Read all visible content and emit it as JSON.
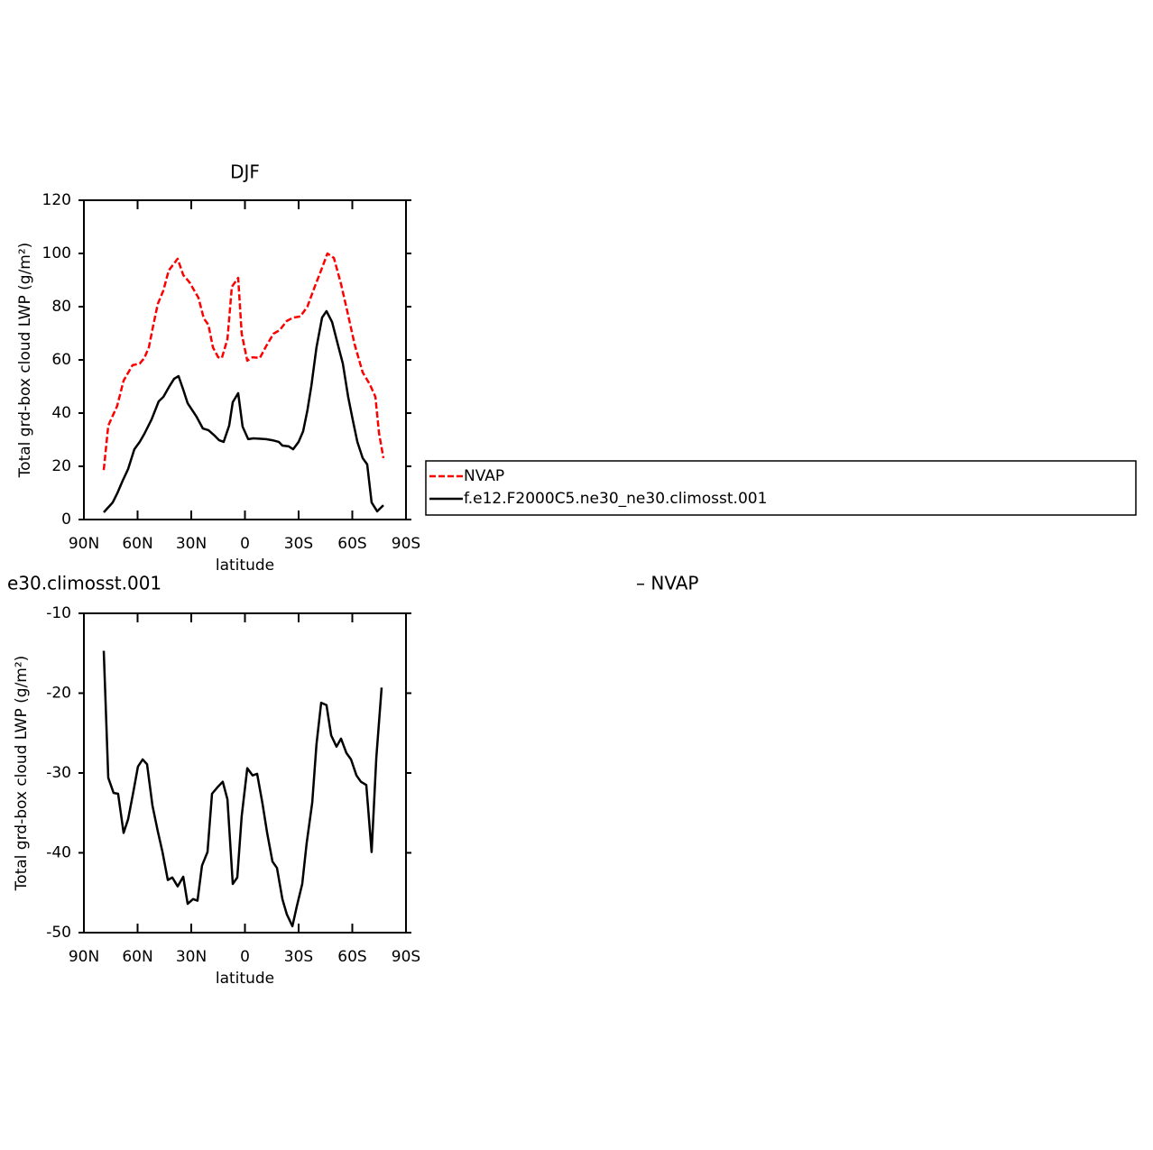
{
  "chart_data": [
    {
      "type": "line",
      "title": "DJF",
      "xlabel": "latitude",
      "ylabel": "Total grd-box cloud LWP (g/m²)",
      "xlim": [
        90,
        -90
      ],
      "xticks": [
        {
          "value": 90,
          "label": "90N"
        },
        {
          "value": 60,
          "label": "60N"
        },
        {
          "value": 30,
          "label": "30N"
        },
        0,
        {
          "value": -30,
          "label": "30S"
        },
        {
          "value": -60,
          "label": "60S"
        },
        {
          "value": -90,
          "label": "90S"
        }
      ],
      "ylim": [
        0,
        120
      ],
      "yticks": [
        0,
        20,
        40,
        60,
        80,
        100,
        120
      ],
      "legend": "outside right",
      "series": [
        {
          "name": "NVAP",
          "color": "#ff0000",
          "dashed": true,
          "x": [
            78.9,
            76.4,
            71.4,
            67.8,
            62.8,
            58.8,
            56.2,
            53.7,
            51.2,
            48.7,
            45.6,
            42.6,
            37.6,
            34.5,
            31,
            26,
            23,
            20.4,
            17.9,
            14.9,
            12.9,
            9.8,
            7.3,
            3.8,
            1.8,
            -1.3,
            -4.3,
            -8.3,
            -11.8,
            -15.9,
            -19.4,
            -23.4,
            -26.9,
            -30.9,
            -34.9,
            -38.6,
            -43.1,
            -46.1,
            -49.7,
            -53.7,
            -57.2,
            -61.3,
            -65.8,
            -69.8,
            -72.9,
            -74.9,
            -77.4
          ],
          "values": [
            18.6,
            35.3,
            42.7,
            52.2,
            58,
            58.6,
            60.7,
            64.7,
            73.2,
            81,
            86.1,
            93.6,
            98,
            91.9,
            89.2,
            83.4,
            75.6,
            73.2,
            64.7,
            61,
            60.7,
            67.8,
            87.5,
            90.8,
            69.8,
            59.7,
            61,
            60.7,
            65.1,
            69.8,
            71.2,
            74.6,
            75.9,
            76.3,
            80,
            86.8,
            94.6,
            100,
            98.3,
            88.5,
            78.3,
            65.8,
            55.3,
            50.8,
            46.1,
            32.5,
            23.1
          ]
        },
        {
          "name": "f.e12.F2000C5.ne30_ne30.climosst.001",
          "color": "#000000",
          "dashed": false,
          "x": [
            78.9,
            73.9,
            71.4,
            68.3,
            65.3,
            61.8,
            58.8,
            56.2,
            52.2,
            48.2,
            45.6,
            42.1,
            39.6,
            37.1,
            34.5,
            32,
            27,
            23.5,
            20.4,
            16.9,
            14.4,
            11.9,
            8.8,
            6.8,
            3.8,
            1.3,
            -1.8,
            -4.8,
            -11.8,
            -15.4,
            -18.9,
            -20.9,
            -24.5,
            -26.9,
            -30,
            -32.5,
            -34.9,
            -37.1,
            -40,
            -43.1,
            -45.6,
            -48.7,
            -51.7,
            -54.7,
            -57.7,
            -60.3,
            -62.8,
            -65.8,
            -68.3,
            -70.8,
            -73.9,
            -77.4
          ],
          "values": [
            2.7,
            6.4,
            9.8,
            14.6,
            19,
            26.4,
            29.2,
            32.2,
            37.6,
            44.4,
            46.1,
            50.2,
            52.9,
            53.9,
            48.8,
            43.7,
            38.6,
            34.2,
            33.6,
            31.5,
            29.8,
            29.2,
            35.3,
            44.1,
            47.5,
            34.9,
            30.2,
            30.5,
            30.2,
            29.8,
            29.2,
            27.8,
            27.5,
            26.4,
            29.2,
            33.2,
            41,
            50.2,
            64.7,
            75.9,
            78.3,
            74.2,
            66.4,
            58.6,
            46.1,
            37.3,
            29.2,
            23.1,
            20.7,
            6.4,
            3.1,
            5.4
          ]
        }
      ]
    },
    {
      "type": "line",
      "title_left": "e30.climosst.001",
      "title_right": "– NVAP",
      "xlabel": "latitude",
      "ylabel": "Total grd-box cloud LWP (g/m²)",
      "xlim": [
        90,
        -90
      ],
      "xticks": [
        {
          "value": 90,
          "label": "90N"
        },
        {
          "value": 60,
          "label": "60N"
        },
        {
          "value": 30,
          "label": "30N"
        },
        0,
        {
          "value": -30,
          "label": "30S"
        },
        {
          "value": -60,
          "label": "60S"
        },
        {
          "value": -90,
          "label": "90S"
        }
      ],
      "ylim": [
        -50,
        -10
      ],
      "yticks": [
        -50,
        -40,
        -30,
        -20,
        -10
      ],
      "series": [
        {
          "color": "#000000",
          "dashed": false,
          "x": [
            78.9,
            76.4,
            73.4,
            70.9,
            67.8,
            65.3,
            62.3,
            59.8,
            57.2,
            54.7,
            51.7,
            48.7,
            46.1,
            43.1,
            40.6,
            37.6,
            34.5,
            32,
            29,
            26.5,
            24,
            20.9,
            18.4,
            15.4,
            12.4,
            9.8,
            6.8,
            4.3,
            1.8,
            -1.3,
            -4.3,
            -6.8,
            -9.8,
            -12.4,
            -15.4,
            -17.9,
            -20.9,
            -23.4,
            -26.5,
            -29,
            -32,
            -34.5,
            -37.6,
            -40,
            -42.6,
            -45.6,
            -48.2,
            -51.2,
            -53.7,
            -56.7,
            -59.3,
            -62.3,
            -64.8,
            -67.8,
            -70.8,
            -73.4,
            -76.4
          ],
          "values": [
            -14.7,
            -30.6,
            -32.5,
            -32.6,
            -37.5,
            -35.8,
            -32.3,
            -29.2,
            -28.3,
            -28.9,
            -34.1,
            -37.3,
            -39.9,
            -43.4,
            -43.1,
            -44.2,
            -43,
            -46.4,
            -45.8,
            -46,
            -41.6,
            -39.9,
            -32.6,
            -31.8,
            -31.1,
            -33.3,
            -43.9,
            -43.1,
            -35.4,
            -29.4,
            -30.3,
            -30.1,
            -33.8,
            -37.5,
            -41.1,
            -41.9,
            -45.8,
            -47.7,
            -49.2,
            -46.7,
            -43.9,
            -38.8,
            -33.7,
            -26.4,
            -21.2,
            -21.5,
            -25.3,
            -26.7,
            -25.7,
            -27.5,
            -28.3,
            -30.3,
            -31.1,
            -31.5,
            -39.9,
            -28.1,
            -19.3
          ]
        }
      ]
    }
  ]
}
